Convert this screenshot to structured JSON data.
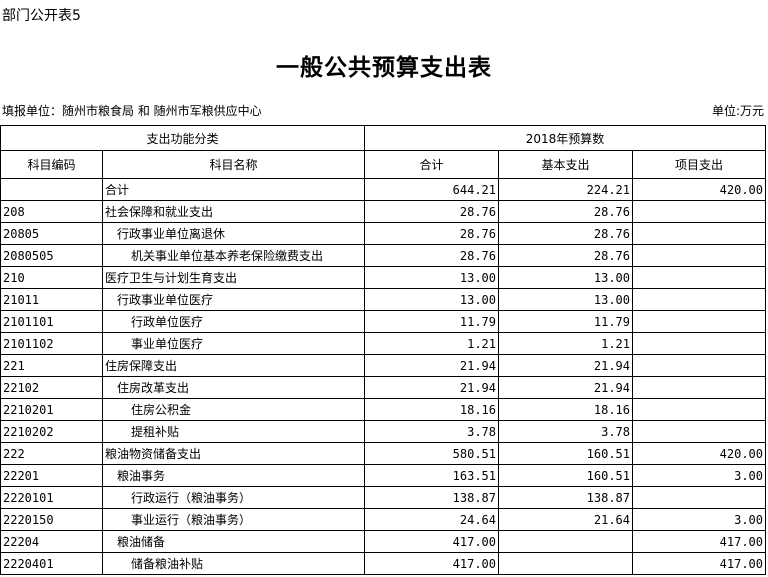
{
  "doc_tag": "部门公开表5",
  "title": "一般公共预算支出表",
  "filler": "填报单位：随州市粮食局 和 随州市军粮供应中心",
  "unit": "单位:万元",
  "headers": {
    "group1": "支出功能分类",
    "group2": "2018年预算数",
    "code": "科目编码",
    "name": "科目名称",
    "total": "合计",
    "basic": "基本支出",
    "project": "项目支出"
  },
  "rows": [
    {
      "code": "",
      "name": "合计",
      "level": 0,
      "total": "644.21",
      "basic": "224.21",
      "project": "420.00"
    },
    {
      "code": "208",
      "name": "社会保障和就业支出",
      "level": 0,
      "total": "28.76",
      "basic": "28.76",
      "project": ""
    },
    {
      "code": "20805",
      "name": "行政事业单位离退休",
      "level": 1,
      "total": "28.76",
      "basic": "28.76",
      "project": ""
    },
    {
      "code": "2080505",
      "name": "机关事业单位基本养老保险缴费支出",
      "level": 2,
      "total": "28.76",
      "basic": "28.76",
      "project": ""
    },
    {
      "code": "210",
      "name": "医疗卫生与计划生育支出",
      "level": 0,
      "total": "13.00",
      "basic": "13.00",
      "project": ""
    },
    {
      "code": "21011",
      "name": "行政事业单位医疗",
      "level": 1,
      "total": "13.00",
      "basic": "13.00",
      "project": ""
    },
    {
      "code": "2101101",
      "name": "行政单位医疗",
      "level": 2,
      "total": "11.79",
      "basic": "11.79",
      "project": ""
    },
    {
      "code": "2101102",
      "name": "事业单位医疗",
      "level": 2,
      "total": "1.21",
      "basic": "1.21",
      "project": ""
    },
    {
      "code": "221",
      "name": "住房保障支出",
      "level": 0,
      "total": "21.94",
      "basic": "21.94",
      "project": ""
    },
    {
      "code": "22102",
      "name": "住房改革支出",
      "level": 1,
      "total": "21.94",
      "basic": "21.94",
      "project": ""
    },
    {
      "code": "2210201",
      "name": "住房公积金",
      "level": 2,
      "total": "18.16",
      "basic": "18.16",
      "project": ""
    },
    {
      "code": "2210202",
      "name": "提租补贴",
      "level": 2,
      "total": "3.78",
      "basic": "3.78",
      "project": ""
    },
    {
      "code": "222",
      "name": "粮油物资储备支出",
      "level": 0,
      "total": "580.51",
      "basic": "160.51",
      "project": "420.00"
    },
    {
      "code": "22201",
      "name": "粮油事务",
      "level": 1,
      "total": "163.51",
      "basic": "160.51",
      "project": "3.00"
    },
    {
      "code": "2220101",
      "name": "行政运行（粮油事务）",
      "level": 2,
      "total": "138.87",
      "basic": "138.87",
      "project": ""
    },
    {
      "code": "2220150",
      "name": "事业运行（粮油事务）",
      "level": 2,
      "total": "24.64",
      "basic": "21.64",
      "project": "3.00"
    },
    {
      "code": "22204",
      "name": "粮油储备",
      "level": 1,
      "total": "417.00",
      "basic": "",
      "project": "417.00"
    },
    {
      "code": "2220401",
      "name": "储备粮油补贴",
      "level": 2,
      "total": "417.00",
      "basic": "",
      "project": "417.00"
    }
  ]
}
